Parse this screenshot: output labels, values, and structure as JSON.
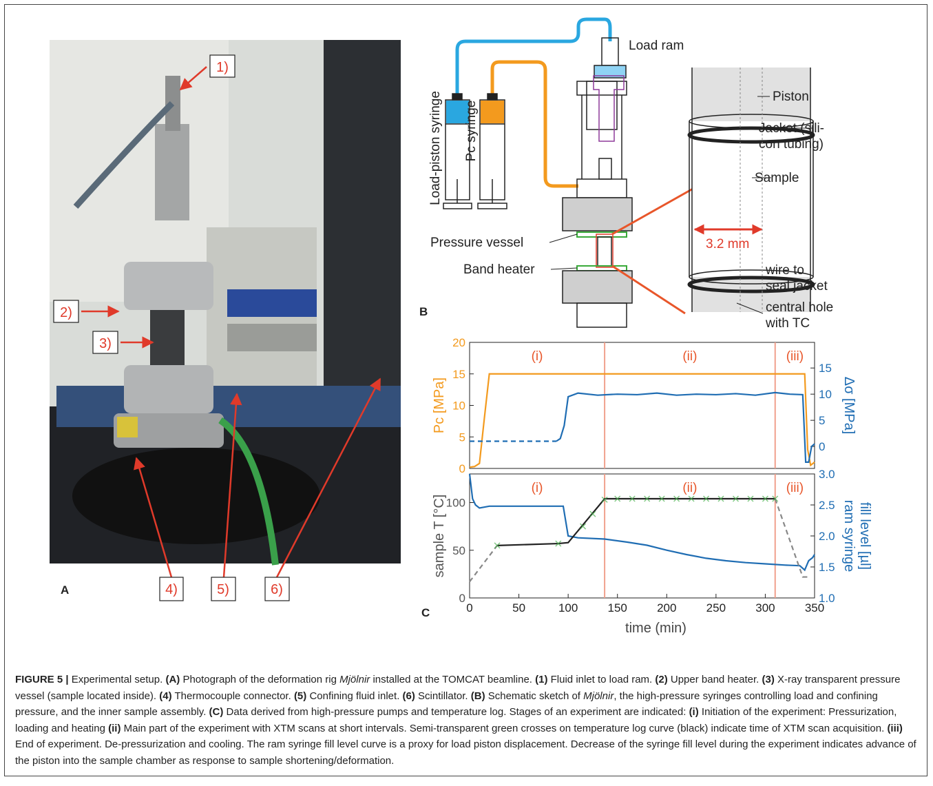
{
  "photo": {
    "panel": "A",
    "labels": [
      "1)",
      "2)",
      "3)",
      "4)",
      "5)",
      "6)"
    ]
  },
  "schematic": {
    "panel": "B",
    "load_ram": "Load ram",
    "load_syringe": "Load-piston syringe",
    "pc_syringe": "Pc syringe",
    "pressure_vessel": "Pressure vessel",
    "band_heater": "Band heater",
    "piston": "Piston",
    "jacket": [
      "Jacket (sili-",
      "con tubing)"
    ],
    "sample": "Sample",
    "width": "3.2 mm",
    "wire": [
      "wire to",
      "seal jacket"
    ],
    "hole": [
      "central hole",
      "with TC"
    ]
  },
  "chart_panel": "C",
  "chart_data": [
    {
      "type": "line",
      "ylabel": "Pc [MPa]",
      "y2label": [
        "Δσ [MPa]"
      ],
      "ycolor": "#f39a1e",
      "y2color": "#1f6db3",
      "xlim": [
        0,
        350
      ],
      "ylim": [
        0,
        20
      ],
      "yticks": [
        0,
        5,
        10,
        15,
        20
      ],
      "y2lim": [
        -4.2,
        19.9
      ],
      "y2ticks": [
        0,
        5,
        10,
        15
      ],
      "stages": [
        "(i)",
        "(ii)",
        "(iii)"
      ],
      "vlines": [
        137,
        310
      ],
      "series": [
        {
          "color": "#f39a1e",
          "x": [
            0,
            5,
            10,
            15,
            20,
            335,
            340,
            343,
            346,
            350
          ],
          "values": [
            0.2,
            0.3,
            0.8,
            8,
            15,
            15,
            15,
            3,
            0.5,
            1
          ]
        },
        {
          "color": "#1f6db3",
          "axis": "y2",
          "dashed": true,
          "x": [
            0,
            88
          ],
          "values": [
            1,
            1
          ]
        },
        {
          "color": "#1f6db3",
          "axis": "y2",
          "x": [
            88,
            92,
            96,
            100,
            110,
            130,
            150,
            170,
            190,
            210,
            230,
            250,
            270,
            290,
            310,
            325,
            338,
            341,
            344,
            347,
            350
          ],
          "values": [
            1,
            1.5,
            4,
            9.5,
            10.2,
            9.8,
            10,
            9.9,
            10.2,
            9.8,
            10,
            9.9,
            10.1,
            9.8,
            10.3,
            10,
            9.9,
            -3,
            -3,
            0,
            0.5
          ]
        }
      ]
    },
    {
      "type": "line",
      "ylabel": "sample T [°C]",
      "y2label": [
        "ram syringe",
        "fill level [µl]"
      ],
      "xlabel": "time (min)",
      "ycolor": "#555555",
      "y2color": "#1f6db3",
      "xlim": [
        0,
        350
      ],
      "xticks": [
        0,
        50,
        100,
        150,
        200,
        250,
        300,
        350
      ],
      "ylim": [
        0,
        130
      ],
      "yticks": [
        0,
        50,
        100
      ],
      "y2lim": [
        1,
        3
      ],
      "y2ticks": [
        {
          "value": 1,
          "label": "1.0"
        },
        {
          "value": 1.5,
          "label": "1.5"
        },
        {
          "value": 2,
          "label": "2.0"
        },
        {
          "value": 2.5,
          "label": "2.5"
        },
        {
          "value": 3,
          "label": "3.0"
        }
      ],
      "stages": [
        "(i)",
        "(ii)",
        "(iii)"
      ],
      "vlines": [
        137,
        310
      ],
      "series": [
        {
          "color": "#1f6db3",
          "axis": "y2",
          "x": [
            0,
            3,
            6,
            10,
            20,
            60,
            95,
            100,
            110,
            137,
            160,
            180,
            200,
            220,
            240,
            260,
            280,
            300,
            320,
            335,
            340,
            344,
            348,
            350
          ],
          "values": [
            3.0,
            2.6,
            2.5,
            2.45,
            2.48,
            2.48,
            2.48,
            2.0,
            1.97,
            1.95,
            1.9,
            1.85,
            1.77,
            1.7,
            1.64,
            1.6,
            1.57,
            1.55,
            1.53,
            1.52,
            1.45,
            1.6,
            1.65,
            1.7
          ]
        },
        {
          "color": "#888888",
          "dashed": true,
          "x": [
            0,
            28
          ],
          "values": [
            17,
            55
          ]
        },
        {
          "color": "#888888",
          "dashed": true,
          "x": [
            310,
            338,
            345
          ],
          "values": [
            104,
            22,
            22
          ]
        },
        {
          "color": "#222222",
          "x": [
            28,
            90,
            100,
            137,
            310
          ],
          "values": [
            55,
            57,
            58,
            104,
            104
          ]
        },
        {
          "color": "#4caf50",
          "marker": "x",
          "x": [
            28,
            90,
            115,
            125,
            137,
            150,
            165,
            180,
            195,
            210,
            225,
            240,
            255,
            270,
            285,
            300,
            310
          ],
          "values": [
            55,
            57,
            75,
            88,
            103,
            104,
            104,
            104,
            104,
            104,
            104,
            104,
            104,
            104,
            104,
            104,
            104
          ]
        }
      ]
    }
  ],
  "caption": [
    {
      "text": "FIGURE 5 |",
      "bold": true
    },
    {
      "text": " Experimental setup. "
    },
    {
      "text": "(A)",
      "bold": true
    },
    {
      "text": " Photograph of the deformation rig "
    },
    {
      "text": "Mjölnir",
      "italic": true
    },
    {
      "text": " installed at the TOMCAT beamline. "
    },
    {
      "text": "(1)",
      "bold": true
    },
    {
      "text": " Fluid inlet to load ram. "
    },
    {
      "text": "(2)",
      "bold": true
    },
    {
      "text": " Upper band heater. "
    },
    {
      "text": "(3)",
      "bold": true
    },
    {
      "text": " X-ray transparent pressure vessel (sample located inside). "
    },
    {
      "text": "(4)",
      "bold": true
    },
    {
      "text": " Thermocouple connector. "
    },
    {
      "text": "(5)",
      "bold": true
    },
    {
      "text": " Confining fluid inlet. "
    },
    {
      "text": "(6)",
      "bold": true
    },
    {
      "text": " Scintillator. "
    },
    {
      "text": "(B)",
      "bold": true
    },
    {
      "text": " Schematic sketch of "
    },
    {
      "text": "Mjölnir",
      "italic": true
    },
    {
      "text": ", the high-pressure syringes controlling load and confining pressure, and the inner sample assembly. "
    },
    {
      "text": "(C)",
      "bold": true
    },
    {
      "text": " Data derived from high-pressure pumps and temperature log. Stages of an experiment are indicated: "
    },
    {
      "text": "(i)",
      "bold": true
    },
    {
      "text": " Initiation of the experiment: Pressurization, loading and heating "
    },
    {
      "text": "(ii)",
      "bold": true
    },
    {
      "text": " Main part of the experiment with XTM scans at short intervals. Semi-transparent green crosses on temperature log curve (black) indicate time of XTM scan acquisition. "
    },
    {
      "text": "(iii)",
      "bold": true
    },
    {
      "text": " End of experiment. De-pressurization and cooling. The ram syringe fill level curve is a proxy for load piston displacement. Decrease of the syringe fill level during the experiment indicates advance of the piston into the sample chamber as response to sample shortening/deformation."
    }
  ]
}
